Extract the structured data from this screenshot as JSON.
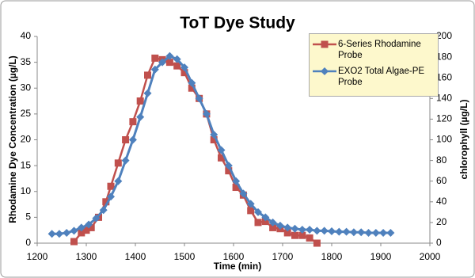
{
  "chart_data": {
    "type": "line",
    "title": "ToT Dye Study",
    "x_label": "Time (min)",
    "y_label": "Rhodamine Dye Concentration (µg/L)",
    "y2_label": "chlorophyll (µg/L)",
    "xlim": [
      1200,
      2000
    ],
    "xticks": [
      1200,
      1300,
      1400,
      1500,
      1600,
      1700,
      1800,
      1900,
      2000
    ],
    "ylim": [
      0,
      40
    ],
    "yticks": [
      0,
      5,
      10,
      15,
      20,
      25,
      30,
      35,
      40
    ],
    "y2lim": [
      0,
      200
    ],
    "y2ticks": [
      0,
      20,
      40,
      60,
      80,
      100,
      120,
      140,
      160,
      180,
      200
    ],
    "legend": "upper right",
    "series": [
      {
        "name": "6-Series Rhodamine Probe",
        "color": "#c0504d",
        "marker": "square",
        "x": [
          1275,
          1290,
          1300,
          1310,
          1325,
          1340,
          1350,
          1365,
          1380,
          1395,
          1410,
          1425,
          1440,
          1455,
          1470,
          1485,
          1500,
          1515,
          1530,
          1545,
          1560,
          1575,
          1590,
          1605,
          1620,
          1635,
          1650,
          1665,
          1680,
          1695,
          1710,
          1725,
          1740,
          1755,
          1770
        ],
        "values": [
          0.3,
          2,
          2.5,
          3,
          5,
          8,
          11,
          15.5,
          20,
          23.5,
          27.5,
          32.5,
          35.8,
          35.5,
          35,
          34.3,
          33,
          30,
          28,
          25,
          20,
          16.5,
          14,
          10.8,
          9.3,
          6.3,
          4,
          4.2,
          3,
          2.8,
          2,
          1.5,
          1.5,
          1,
          0
        ]
      },
      {
        "name": "EXO2 Total Algae-PE Probe",
        "color": "#4f81bd",
        "marker": "diamond",
        "axis": "y2",
        "x": [
          1230,
          1245,
          1260,
          1275,
          1290,
          1305,
          1320,
          1335,
          1350,
          1365,
          1380,
          1395,
          1410,
          1425,
          1440,
          1455,
          1470,
          1485,
          1500,
          1515,
          1530,
          1545,
          1560,
          1575,
          1590,
          1605,
          1620,
          1635,
          1650,
          1665,
          1680,
          1695,
          1710,
          1725,
          1740,
          1755,
          1770,
          1785,
          1800,
          1815,
          1830,
          1845,
          1860,
          1875,
          1890,
          1905,
          1920
        ],
        "values": [
          9,
          9,
          10,
          12,
          15,
          18,
          24,
          32,
          45,
          60,
          80,
          100,
          122,
          145,
          168,
          175,
          181,
          178,
          170,
          155,
          140,
          125,
          105,
          90,
          75,
          60,
          48,
          38,
          30,
          25,
          20,
          17,
          15,
          14,
          13,
          13,
          12,
          12,
          11.5,
          11,
          11,
          10.5,
          10.5,
          10,
          10,
          10,
          10
        ]
      }
    ]
  }
}
